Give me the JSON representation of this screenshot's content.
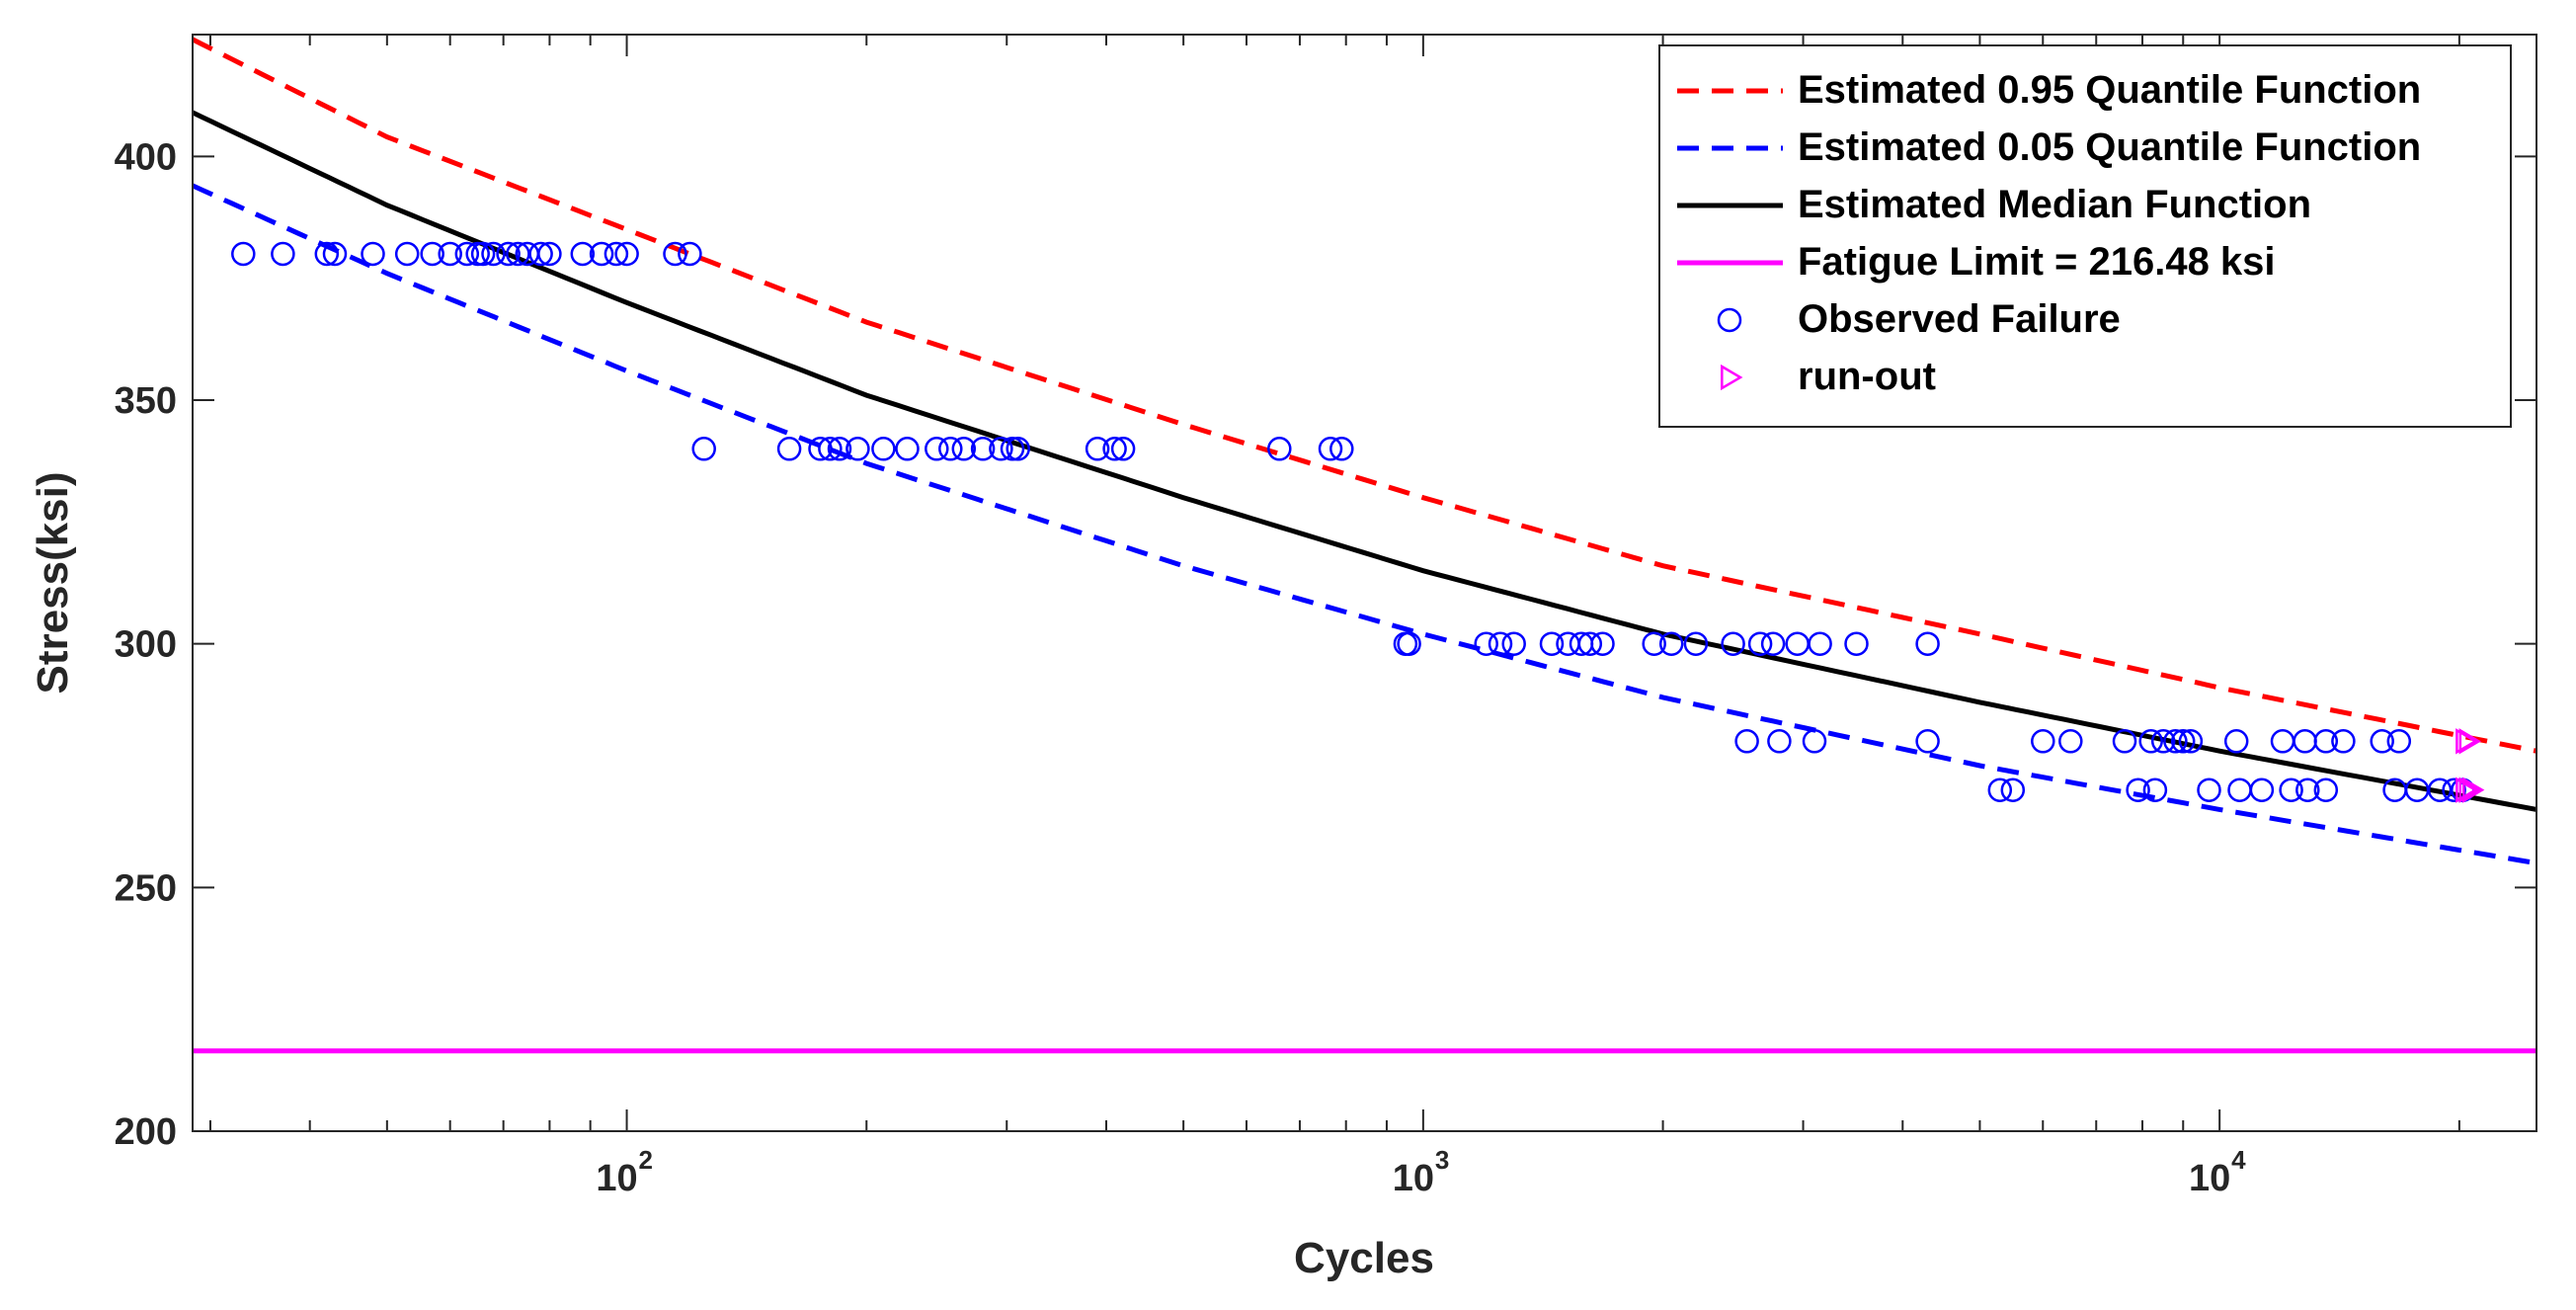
{
  "chart_data": {
    "type": "scatter",
    "title": "",
    "xlabel": "Cycles",
    "ylabel": "Stress(ksi)",
    "x_scale": "log",
    "xlim": [
      28.5,
      25000
    ],
    "ylim": [
      200,
      425
    ],
    "x_ticks": [
      {
        "value": 100,
        "base": "10",
        "exp": "2"
      },
      {
        "value": 1000,
        "base": "10",
        "exp": "3"
      },
      {
        "value": 10000,
        "base": "10",
        "exp": "4"
      }
    ],
    "y_ticks": [
      "200",
      "250",
      "300",
      "350",
      "400"
    ],
    "grid": false,
    "legend_position": "top-right",
    "colors": {
      "q95": "#ff0000",
      "q05": "#0000ff",
      "median": "#000000",
      "limit": "#ff00ff",
      "failure": "#0000ff",
      "runout": "#ff00ff"
    },
    "series": [
      {
        "name": "Estimated 0.95 Quantile Function",
        "style": "dashed",
        "points": [
          [
            28.5,
            424
          ],
          [
            50,
            404
          ],
          [
            100,
            385
          ],
          [
            200,
            366
          ],
          [
            500,
            345
          ],
          [
            1000,
            330
          ],
          [
            2000,
            316
          ],
          [
            5000,
            302
          ],
          [
            10000,
            291
          ],
          [
            25000,
            278
          ]
        ]
      },
      {
        "name": "Estimated 0.05 Quantile Function",
        "style": "dashed",
        "points": [
          [
            28.5,
            394
          ],
          [
            50,
            376
          ],
          [
            100,
            356
          ],
          [
            200,
            337
          ],
          [
            500,
            316
          ],
          [
            1000,
            302
          ],
          [
            2000,
            289
          ],
          [
            5000,
            275
          ],
          [
            10000,
            266
          ],
          [
            25000,
            255
          ]
        ]
      },
      {
        "name": "Estimated Median Function",
        "style": "solid",
        "points": [
          [
            28.5,
            409
          ],
          [
            50,
            390
          ],
          [
            100,
            370
          ],
          [
            200,
            351
          ],
          [
            500,
            330
          ],
          [
            1000,
            315
          ],
          [
            2000,
            302
          ],
          [
            5000,
            288
          ],
          [
            10000,
            278
          ],
          [
            25000,
            266
          ]
        ]
      },
      {
        "name": "Fatigue Limit = 216.48 ksi",
        "style": "solid",
        "points": [
          [
            28.5,
            216.48
          ],
          [
            25000,
            216.48
          ]
        ]
      },
      {
        "name": "Observed Failure",
        "style": "marker-circle",
        "points": [
          [
            33,
            380
          ],
          [
            37,
            380
          ],
          [
            42,
            380
          ],
          [
            43,
            380
          ],
          [
            48,
            380
          ],
          [
            53,
            380
          ],
          [
            57,
            380
          ],
          [
            60,
            380
          ],
          [
            63,
            380
          ],
          [
            65,
            380
          ],
          [
            66,
            380
          ],
          [
            68,
            380
          ],
          [
            71,
            380
          ],
          [
            73,
            380
          ],
          [
            75,
            380
          ],
          [
            78,
            380
          ],
          [
            80,
            380
          ],
          [
            88,
            380
          ],
          [
            93,
            380
          ],
          [
            97,
            380
          ],
          [
            100,
            380
          ],
          [
            115,
            380
          ],
          [
            120,
            380
          ],
          [
            125,
            340
          ],
          [
            160,
            340
          ],
          [
            175,
            340
          ],
          [
            180,
            340
          ],
          [
            185,
            340
          ],
          [
            195,
            340
          ],
          [
            210,
            340
          ],
          [
            225,
            340
          ],
          [
            245,
            340
          ],
          [
            255,
            340
          ],
          [
            265,
            340
          ],
          [
            280,
            340
          ],
          [
            295,
            340
          ],
          [
            305,
            340
          ],
          [
            310,
            340
          ],
          [
            390,
            340
          ],
          [
            410,
            340
          ],
          [
            420,
            340
          ],
          [
            660,
            340
          ],
          [
            765,
            340
          ],
          [
            790,
            340
          ],
          [
            950,
            300
          ],
          [
            960,
            300
          ],
          [
            1200,
            300
          ],
          [
            1250,
            300
          ],
          [
            1300,
            300
          ],
          [
            1450,
            300
          ],
          [
            1520,
            300
          ],
          [
            1580,
            300
          ],
          [
            1620,
            300
          ],
          [
            1680,
            300
          ],
          [
            1950,
            300
          ],
          [
            2050,
            300
          ],
          [
            2200,
            300
          ],
          [
            2450,
            300
          ],
          [
            2650,
            300
          ],
          [
            2750,
            300
          ],
          [
            2950,
            300
          ],
          [
            3150,
            300
          ],
          [
            3500,
            300
          ],
          [
            4300,
            300
          ],
          [
            2550,
            280
          ],
          [
            2800,
            280
          ],
          [
            3100,
            280
          ],
          [
            4300,
            280
          ],
          [
            6000,
            280
          ],
          [
            6500,
            280
          ],
          [
            7600,
            280
          ],
          [
            8200,
            280
          ],
          [
            8500,
            280
          ],
          [
            8800,
            280
          ],
          [
            9000,
            280
          ],
          [
            9200,
            280
          ],
          [
            10500,
            280
          ],
          [
            12000,
            280
          ],
          [
            12800,
            280
          ],
          [
            13600,
            280
          ],
          [
            14300,
            280
          ],
          [
            16000,
            280
          ],
          [
            16800,
            280
          ],
          [
            5300,
            270
          ],
          [
            5500,
            270
          ],
          [
            7900,
            270
          ],
          [
            8300,
            270
          ],
          [
            9700,
            270
          ],
          [
            10600,
            270
          ],
          [
            11300,
            270
          ],
          [
            12300,
            270
          ],
          [
            12900,
            270
          ],
          [
            13600,
            270
          ],
          [
            16600,
            270
          ],
          [
            17700,
            270
          ],
          [
            18900,
            270
          ],
          [
            19700,
            270
          ],
          [
            20200,
            270
          ]
        ]
      },
      {
        "name": "run-out",
        "style": "marker-triangle",
        "points": [
          [
            20300,
            280
          ],
          [
            20500,
            280
          ],
          [
            20300,
            270
          ],
          [
            20500,
            270
          ],
          [
            20700,
            270
          ]
        ]
      }
    ]
  }
}
